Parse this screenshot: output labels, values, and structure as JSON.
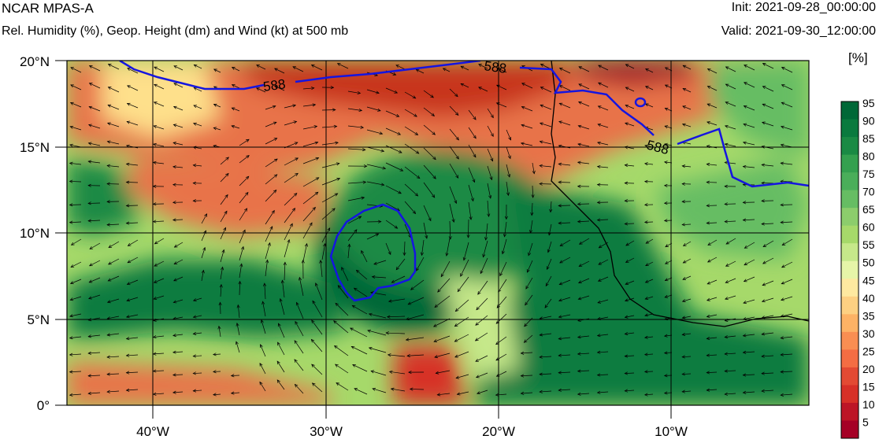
{
  "header": {
    "title": "NCAR MPAS-A",
    "subtitle": "Rel. Humidity (%), Geop. Height (dm) and Wind (kt) at 500 mb",
    "init": "Init: 2021-09-28_00:00:00",
    "valid": "Valid: 2021-09-30_12:00:00"
  },
  "axes": {
    "lat_labels": [
      "20°N",
      "15°N",
      "10°N",
      "5°N",
      "0°"
    ],
    "lon_labels": [
      "40°W",
      "30°W",
      "20°W",
      "10°W"
    ],
    "lat_values": [
      20,
      15,
      10,
      5,
      0
    ],
    "lon_values": [
      -40,
      -30,
      -20,
      -10
    ],
    "lon_range": [
      -45,
      -2
    ],
    "lat_range": [
      0,
      20
    ]
  },
  "colorbar": {
    "units": "[%]",
    "labels": [
      "95",
      "90",
      "85",
      "80",
      "75",
      "70",
      "65",
      "60",
      "55",
      "50",
      "45",
      "40",
      "35",
      "30",
      "25",
      "20",
      "15",
      "10",
      "5"
    ],
    "colors": [
      "#006837",
      "#0a7a3e",
      "#1a8a44",
      "#34a04f",
      "#4aae5a",
      "#66bd63",
      "#8ccd6c",
      "#a6d96a",
      "#c6e88a",
      "#e6f5a8",
      "#fee9a0",
      "#fdd082",
      "#fdb265",
      "#f98e52",
      "#f46d43",
      "#e34a33",
      "#d73027",
      "#bd1526",
      "#a50026"
    ]
  },
  "contours": {
    "geop_height_label": "588",
    "line_color": "#1515e0"
  },
  "fields": {
    "moist_color": "#0c7c3f",
    "dry_color": "#c8341f",
    "mid_color": "#a6d96a",
    "coast_color": "#000000",
    "wind_color": "#000000"
  }
}
